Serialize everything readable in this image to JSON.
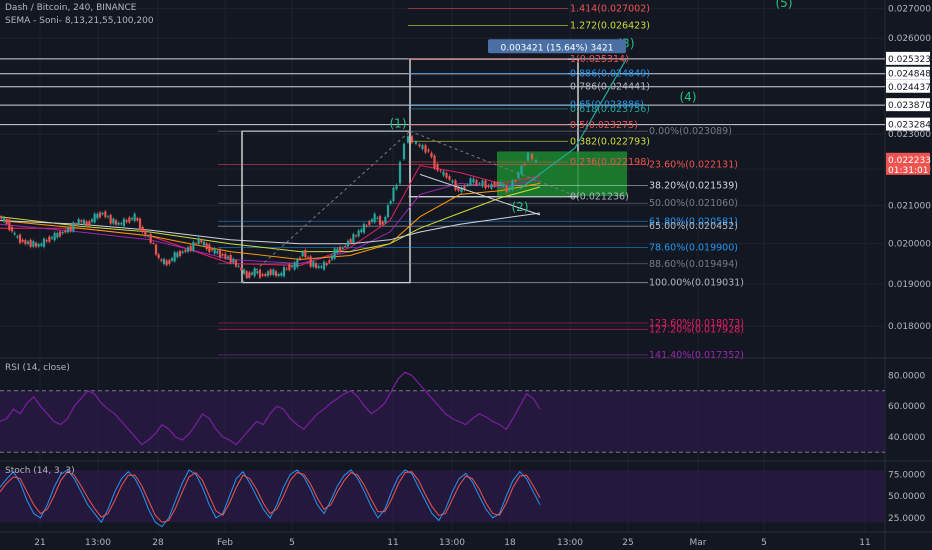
{
  "header": {
    "symbol": "Dash / Bitcoin, 240, BINANCE",
    "indicator": "SEMA - Soni- 8,13,21,55,100,200"
  },
  "colors": {
    "background": "#131722",
    "grid": "#1e222d",
    "axis_text": "#b2b5be",
    "candle_up": "#26a69a",
    "candle_down": "#ef5350",
    "rsi_line": "#7b1fa2",
    "rsi_band": "#311b4f",
    "stoch_k": "#2196f3",
    "stoch_d": "#ef5350",
    "wave_label": "#26c281",
    "price_tag": "#ef5350"
  },
  "chart_data": [
    {
      "type": "candlestick",
      "title": "Dash / Bitcoin, 240, BINANCE",
      "scale": "log",
      "ylim": [
        0.01735,
        0.0273
      ],
      "y_ticks": [
        "0.027000",
        "0.026000",
        "0.025323",
        "0.024848",
        "0.024437",
        "0.023870",
        "0.023284",
        "0.023000",
        "0.022000",
        "0.021000",
        "0.020000",
        "0.019000",
        "0.018000"
      ],
      "y_tick_values": [
        0.027,
        0.026,
        0.025323,
        0.024848,
        0.024437,
        0.02387,
        0.023284,
        0.023,
        0.022,
        0.021,
        0.02,
        0.019,
        0.018
      ],
      "boxed_levels": [
        0.025323,
        0.024848,
        0.024437,
        0.02387,
        0.023284
      ],
      "x_ticks": [
        "21",
        "13:00",
        "28",
        "Feb",
        "5",
        "11",
        "13:00",
        "18",
        "13:00",
        "25",
        "Mar",
        "5",
        "11"
      ],
      "current_price": "0.022233",
      "countdown": "01:31:01",
      "path_points": [
        [
          0,
          0.0207
        ],
        [
          8,
          0.02055
        ],
        [
          16,
          0.0202
        ],
        [
          24,
          0.02005
        ],
        [
          32,
          0.02
        ],
        [
          40,
          0.01995
        ],
        [
          48,
          0.0201
        ],
        [
          56,
          0.0202
        ],
        [
          64,
          0.0203
        ],
        [
          72,
          0.0204
        ],
        [
          80,
          0.0206
        ],
        [
          88,
          0.0205
        ],
        [
          96,
          0.0207
        ],
        [
          104,
          0.0208
        ],
        [
          112,
          0.0206
        ],
        [
          120,
          0.0205
        ],
        [
          128,
          0.0206
        ],
        [
          136,
          0.0207
        ],
        [
          144,
          0.0203
        ],
        [
          152,
          0.0201
        ],
        [
          160,
          0.0196
        ],
        [
          168,
          0.0195
        ],
        [
          176,
          0.0197
        ],
        [
          184,
          0.0198
        ],
        [
          192,
          0.0199
        ],
        [
          200,
          0.0201
        ],
        [
          208,
          0.0199
        ],
        [
          216,
          0.0198
        ],
        [
          224,
          0.0197
        ],
        [
          232,
          0.0196
        ],
        [
          240,
          0.0194
        ],
        [
          248,
          0.0192
        ],
        [
          256,
          0.0193
        ],
        [
          264,
          0.0192
        ],
        [
          272,
          0.0193
        ],
        [
          280,
          0.0192
        ],
        [
          288,
          0.0194
        ],
        [
          296,
          0.01945
        ],
        [
          304,
          0.0198
        ],
        [
          312,
          0.0195
        ],
        [
          320,
          0.0194
        ],
        [
          328,
          0.0195
        ],
        [
          336,
          0.0198
        ],
        [
          344,
          0.0199
        ],
        [
          352,
          0.0201
        ],
        [
          360,
          0.0203
        ],
        [
          368,
          0.0205
        ],
        [
          376,
          0.0207
        ],
        [
          384,
          0.0205
        ],
        [
          392,
          0.0212
        ],
        [
          398,
          0.0216
        ],
        [
          402,
          0.0222
        ],
        [
          406,
          0.0228
        ],
        [
          410,
          0.0229
        ],
        [
          414,
          0.0228
        ],
        [
          418,
          0.0227
        ],
        [
          424,
          0.0226
        ],
        [
          430,
          0.0225
        ],
        [
          436,
          0.0221
        ],
        [
          442,
          0.0219
        ],
        [
          448,
          0.0218
        ],
        [
          454,
          0.0216
        ],
        [
          460,
          0.0214
        ],
        [
          466,
          0.0215
        ],
        [
          472,
          0.0217
        ],
        [
          478,
          0.0216
        ],
        [
          484,
          0.0216
        ],
        [
          490,
          0.0215
        ],
        [
          496,
          0.0216
        ],
        [
          502,
          0.0216
        ],
        [
          508,
          0.0214
        ],
        [
          514,
          0.0216
        ],
        [
          520,
          0.0219
        ],
        [
          526,
          0.0222
        ],
        [
          530,
          0.0225
        ],
        [
          534,
          0.0222
        ],
        [
          538,
          0.02225
        ]
      ],
      "moving_averages": [
        {
          "color": "#e91e63",
          "points": [
            [
              0,
              0.0204
            ],
            [
              80,
              0.0204
            ],
            [
              150,
              0.0202
            ],
            [
              230,
              0.0195
            ],
            [
              300,
              0.01945
            ],
            [
              350,
              0.0199
            ],
            [
              390,
              0.0206
            ],
            [
              420,
              0.0221
            ],
            [
              460,
              0.0219
            ],
            [
              500,
              0.0216
            ],
            [
              540,
              0.0218
            ]
          ]
        },
        {
          "color": "#9c27b0",
          "points": [
            [
              0,
              0.0205
            ],
            [
              80,
              0.0203
            ],
            [
              150,
              0.0201
            ],
            [
              230,
              0.0196
            ],
            [
              300,
              0.0195
            ],
            [
              350,
              0.0198
            ],
            [
              390,
              0.0203
            ],
            [
              420,
              0.0213
            ],
            [
              460,
              0.0216
            ],
            [
              500,
              0.0215
            ],
            [
              540,
              0.0217
            ]
          ]
        },
        {
          "color": "#ff9800",
          "points": [
            [
              0,
              0.0206
            ],
            [
              80,
              0.0204
            ],
            [
              150,
              0.0202
            ],
            [
              230,
              0.0198
            ],
            [
              300,
              0.0196
            ],
            [
              350,
              0.0197
            ],
            [
              390,
              0.02
            ],
            [
              420,
              0.0207
            ],
            [
              460,
              0.0213
            ],
            [
              500,
              0.0214
            ],
            [
              540,
              0.0216
            ]
          ]
        },
        {
          "color": "#cddc39",
          "points": [
            [
              0,
              0.0207
            ],
            [
              80,
              0.02045
            ],
            [
              150,
              0.0203
            ],
            [
              230,
              0.02
            ],
            [
              300,
              0.0198
            ],
            [
              350,
              0.0198
            ],
            [
              390,
              0.02
            ],
            [
              420,
              0.0204
            ],
            [
              460,
              0.0208
            ],
            [
              500,
              0.0212
            ],
            [
              540,
              0.0215
            ]
          ]
        },
        {
          "color": "#d1d4dc",
          "points": [
            [
              0,
              0.0206
            ],
            [
              80,
              0.0205
            ],
            [
              150,
              0.02035
            ],
            [
              230,
              0.0201
            ],
            [
              300,
              0.02
            ],
            [
              350,
              0.02
            ],
            [
              390,
              0.0201
            ],
            [
              420,
              0.0203
            ],
            [
              460,
              0.0205
            ],
            [
              500,
              0.02065
            ],
            [
              540,
              0.0208
            ]
          ]
        }
      ],
      "fib_levels_left": [
        {
          "label": "0.00%(0.023089)",
          "value": 0.023089,
          "color": "#787b86"
        },
        {
          "label": "23.60%(0.022131)",
          "value": 0.022131,
          "color": "#ef5350"
        },
        {
          "label": "38.20%(0.021539)",
          "value": 0.021539,
          "color": "#d1d4dc"
        },
        {
          "label": "50.00%(0.021060)",
          "value": 0.02106,
          "color": "#787b86"
        },
        {
          "label": "61.80%(0.020581)",
          "value": 0.020581,
          "color": "#2196f3"
        },
        {
          "label": "65.00%(0.020452)",
          "value": 0.020452,
          "color": "#b2b5be"
        },
        {
          "label": "78.60%(0.019900)",
          "value": 0.0199,
          "color": "#2196f3"
        },
        {
          "label": "88.60%(0.019494)",
          "value": 0.019494,
          "color": "#787b86"
        },
        {
          "label": "100.00%(0.019031)",
          "value": 0.019031,
          "color": "#b2b5be"
        },
        {
          "label": "123.60%(0.018073)",
          "value": 0.018073,
          "color": "#e91e63"
        },
        {
          "label": "127.20%(0.017928)",
          "value": 0.017928,
          "color": "#e91e63"
        },
        {
          "label": "141.40%(0.017352)",
          "value": 0.017352,
          "color": "#9c27b0"
        }
      ],
      "fib_levels_right": [
        {
          "label": "1.414(0.027002)",
          "value": 0.027002,
          "color": "#ef5350"
        },
        {
          "label": "1.272(0.026423)",
          "value": 0.026423,
          "color": "#cddc39"
        },
        {
          "label": "1(0.025314)",
          "value": 0.025314,
          "color": "#ef5350"
        },
        {
          "label": "0.886(0.024849)",
          "value": 0.024849,
          "color": "#2196f3"
        },
        {
          "label": "0.786(0.024441)",
          "value": 0.024441,
          "color": "#b2b5be"
        },
        {
          "label": "0.65(0.023886)",
          "value": 0.023886,
          "color": "#2196f3"
        },
        {
          "label": "0.618(0.023756)",
          "value": 0.023756,
          "color": "#26a69a"
        },
        {
          "label": "0.5(0.023275)",
          "value": 0.023275,
          "color": "#ef5350"
        },
        {
          "label": "0.382(0.022793)",
          "value": 0.022793,
          "color": "#cddc39"
        },
        {
          "label": "0.236(0.022198)",
          "value": 0.022198,
          "color": "#ef5350"
        },
        {
          "label": "0(0.021236)",
          "value": 0.021236,
          "color": "#b2b5be"
        }
      ],
      "measure_label": "0.003421 (15.64%) 3421",
      "wave_labels": [
        {
          "label": "(1)",
          "x": 398,
          "value": 0.0232
        },
        {
          "label": "(2)",
          "x": 520,
          "value": 0.02085
        },
        {
          "label": "(3)",
          "x": 626,
          "value": 0.0257
        },
        {
          "label": "(4)",
          "x": 688,
          "value": 0.024
        },
        {
          "label": "(5)",
          "x": 784,
          "value": 0.02705
        }
      ]
    },
    {
      "type": "line",
      "title": "RSI (14, close)",
      "ylim": [
        25,
        90
      ],
      "y_ticks": [
        "80.0000",
        "60.0000",
        "40.0000"
      ],
      "y_tick_values": [
        80,
        60,
        40
      ],
      "band": [
        30,
        70
      ],
      "values": [
        50,
        52,
        58,
        55,
        62,
        66,
        60,
        55,
        50,
        48,
        52,
        60,
        65,
        70,
        68,
        62,
        58,
        55,
        50,
        45,
        40,
        35,
        38,
        42,
        48,
        45,
        40,
        38,
        42,
        48,
        55,
        52,
        45,
        40,
        38,
        35,
        40,
        45,
        50,
        48,
        55,
        60,
        58,
        52,
        48,
        45,
        50,
        55,
        58,
        62,
        65,
        68,
        70,
        66,
        60,
        55,
        58,
        62,
        70,
        78,
        82,
        80,
        75,
        70,
        65,
        60,
        55,
        52,
        50,
        48,
        52,
        55,
        53,
        50,
        48,
        45,
        52,
        60,
        68,
        65,
        58
      ]
    },
    {
      "type": "line",
      "title": "Stoch (14, 3, 3)",
      "ylim": [
        10,
        88
      ],
      "y_ticks": [
        "75.0000",
        "50.0000",
        "25.0000"
      ],
      "y_tick_values": [
        75,
        50,
        25
      ],
      "band": [
        20,
        80
      ],
      "series": [
        {
          "color": "#2196f3",
          "values": [
            60,
            70,
            78,
            65,
            45,
            30,
            25,
            40,
            60,
            75,
            80,
            70,
            55,
            40,
            30,
            20,
            35,
            55,
            70,
            78,
            70,
            55,
            35,
            20,
            15,
            25,
            45,
            65,
            80,
            75,
            60,
            40,
            25,
            30,
            50,
            70,
            78,
            65,
            50,
            35,
            25,
            40,
            60,
            75,
            80,
            72,
            58,
            40,
            30,
            45,
            62,
            74,
            80,
            70,
            55,
            38,
            25,
            35,
            55,
            72,
            80,
            76,
            60,
            45,
            30,
            22,
            35,
            55,
            70,
            76,
            66,
            50,
            35,
            25,
            30,
            50,
            68,
            78,
            70,
            55,
            40
          ]
        },
        {
          "color": "#ef5350",
          "values": [
            55,
            65,
            72,
            70,
            55,
            40,
            30,
            35,
            50,
            68,
            78,
            74,
            62,
            48,
            36,
            26,
            30,
            45,
            62,
            74,
            74,
            62,
            45,
            28,
            20,
            22,
            36,
            55,
            72,
            77,
            68,
            50,
            33,
            28,
            42,
            60,
            74,
            70,
            58,
            42,
            30,
            35,
            50,
            68,
            77,
            75,
            64,
            48,
            35,
            40,
            55,
            68,
            77,
            74,
            62,
            46,
            32,
            32,
            46,
            64,
            77,
            78,
            68,
            52,
            38,
            28,
            30,
            46,
            62,
            73,
            70,
            58,
            42,
            30,
            28,
            42,
            60,
            73,
            74,
            62,
            48
          ]
        }
      ]
    }
  ]
}
